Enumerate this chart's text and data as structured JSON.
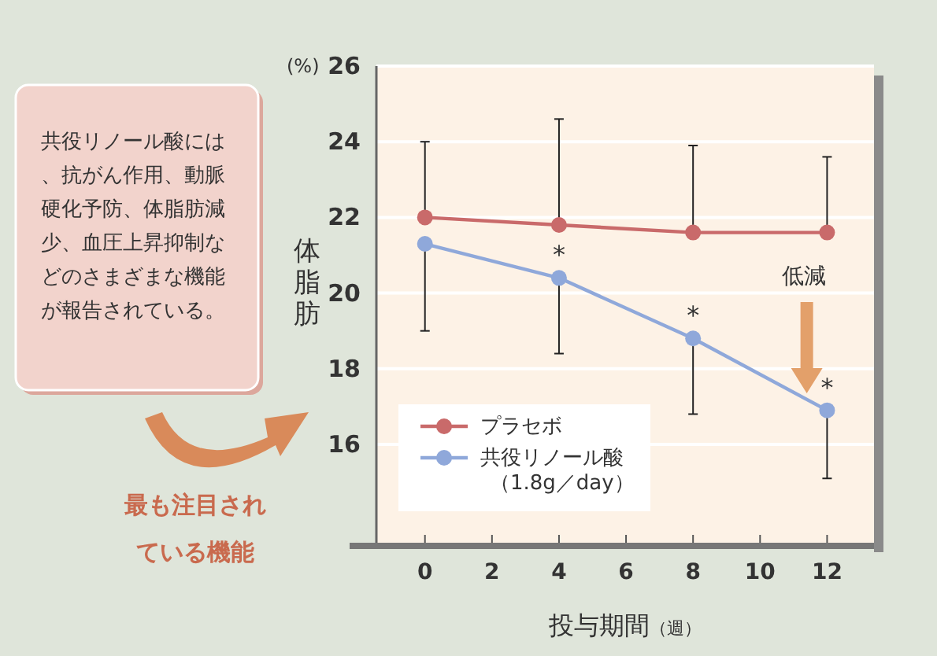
{
  "chart_data": {
    "type": "line",
    "ylabel": "体脂肪",
    "xlabel": "投与期間$_{（週）}$",
    "xlim": [
      -1.45,
      13.4
    ],
    "ylim": [
      13.4,
      26
    ],
    "xticks": [
      0,
      2,
      4,
      6,
      8,
      10,
      12
    ],
    "yticks": [
      16,
      18,
      20,
      22,
      24,
      26
    ],
    "x": [
      0,
      4,
      8,
      12
    ],
    "series": [
      {
        "name": "プラセボ",
        "color": "#c96a6a",
        "values": [
          22.0,
          21.8,
          21.6,
          21.6
        ],
        "errors": [
          [
            22.0,
            24.0
          ],
          [
            21.8,
            24.6
          ],
          [
            21.6,
            23.9
          ],
          [
            21.6,
            23.6
          ]
        ]
      },
      {
        "name": "共役リノール酸（1.8g／day）",
        "color": "#8fa8da",
        "values": [
          21.3,
          20.4,
          18.8,
          16.9
        ],
        "errors": [
          [
            19.0,
            21.3
          ],
          [
            18.4,
            20.4
          ],
          [
            16.8,
            18.8
          ],
          [
            15.1,
            16.9
          ]
        ]
      }
    ],
    "grid": "y",
    "legend": "bottom left",
    "marker": "circle",
    "line_style": "solid",
    "annotations": [
      "共役リノール酸には、抗がん作用、動脈硬化予防、体脂肪減少、血圧上昇抑制などのさまざまな機能が報告されている。",
      "最も注目されている機能",
      "(%)",
      "低減",
      {
        "text": "*",
        "x": 4,
        "y": 20.4
      },
      {
        "text": "*",
        "x": 8,
        "y": 18.8
      },
      {
        "text": "*",
        "x": 12,
        "y": 16.9
      }
    ]
  }
}
